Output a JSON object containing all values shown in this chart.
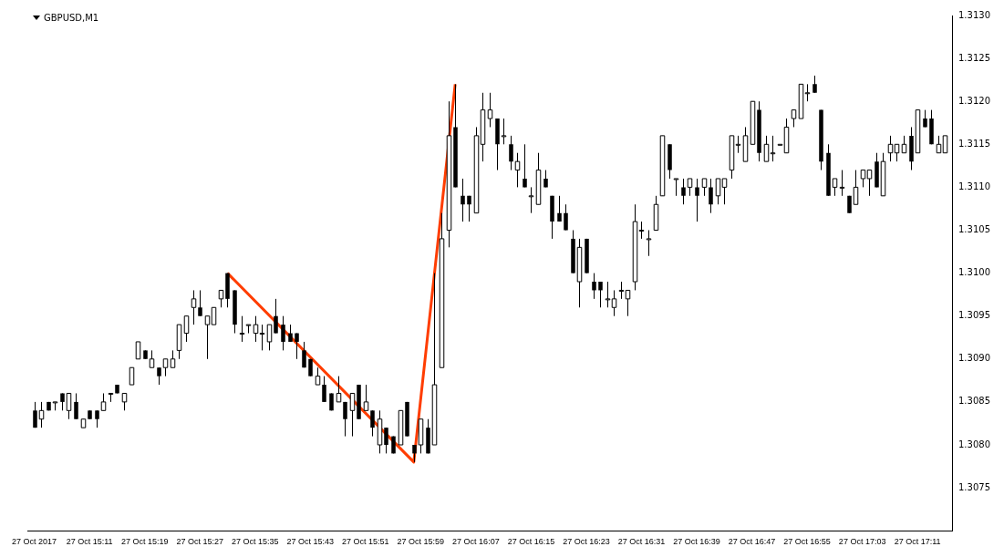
{
  "chart_data": {
    "type": "candlestick",
    "title": "GBPUSD,M1",
    "x": [
      "2017-10-27T15:03",
      "2017-10-27T15:04",
      "2017-10-27T15:05",
      "2017-10-27T15:06",
      "2017-10-27T15:07",
      "2017-10-27T15:08",
      "2017-10-27T15:09",
      "2017-10-27T15:10",
      "2017-10-27T15:11",
      "2017-10-27T15:12",
      "2017-10-27T15:13",
      "2017-10-27T15:14",
      "2017-10-27T15:15",
      "2017-10-27T15:16",
      "2017-10-27T15:17",
      "2017-10-27T15:18",
      "2017-10-27T15:19",
      "2017-10-27T15:20",
      "2017-10-27T15:21",
      "2017-10-27T15:22",
      "2017-10-27T15:23",
      "2017-10-27T15:24",
      "2017-10-27T15:25",
      "2017-10-27T15:26",
      "2017-10-27T15:27",
      "2017-10-27T15:28",
      "2017-10-27T15:29",
      "2017-10-27T15:30",
      "2017-10-27T15:31",
      "2017-10-27T15:32",
      "2017-10-27T15:33",
      "2017-10-27T15:34",
      "2017-10-27T15:35",
      "2017-10-27T15:36",
      "2017-10-27T15:37",
      "2017-10-27T15:38",
      "2017-10-27T15:39",
      "2017-10-27T15:40",
      "2017-10-27T15:41",
      "2017-10-27T15:42",
      "2017-10-27T15:43",
      "2017-10-27T15:44",
      "2017-10-27T15:45",
      "2017-10-27T15:46",
      "2017-10-27T15:47",
      "2017-10-27T15:48",
      "2017-10-27T15:49",
      "2017-10-27T15:50",
      "2017-10-27T15:51",
      "2017-10-27T15:52",
      "2017-10-27T15:53",
      "2017-10-27T15:54",
      "2017-10-27T15:55",
      "2017-10-27T15:56",
      "2017-10-27T15:57",
      "2017-10-27T15:58",
      "2017-10-27T15:59",
      "2017-10-27T16:00",
      "2017-10-27T16:01",
      "2017-10-27T16:02",
      "2017-10-27T16:03",
      "2017-10-27T16:04",
      "2017-10-27T16:05",
      "2017-10-27T16:06",
      "2017-10-27T16:07",
      "2017-10-27T16:08",
      "2017-10-27T16:09",
      "2017-10-27T16:10",
      "2017-10-27T16:11",
      "2017-10-27T16:12",
      "2017-10-27T16:13",
      "2017-10-27T16:14",
      "2017-10-27T16:15",
      "2017-10-27T16:16",
      "2017-10-27T16:17",
      "2017-10-27T16:18",
      "2017-10-27T16:19",
      "2017-10-27T16:20",
      "2017-10-27T16:21",
      "2017-10-27T16:22",
      "2017-10-27T16:23",
      "2017-10-27T16:24",
      "2017-10-27T16:25",
      "2017-10-27T16:26",
      "2017-10-27T16:27",
      "2017-10-27T16:28",
      "2017-10-27T16:29",
      "2017-10-27T16:30",
      "2017-10-27T16:31",
      "2017-10-27T16:32",
      "2017-10-27T16:33",
      "2017-10-27T16:34",
      "2017-10-27T16:35",
      "2017-10-27T16:36",
      "2017-10-27T16:37",
      "2017-10-27T16:38",
      "2017-10-27T16:39",
      "2017-10-27T16:40",
      "2017-10-27T16:41",
      "2017-10-27T16:42",
      "2017-10-27T16:43",
      "2017-10-27T16:44",
      "2017-10-27T16:45",
      "2017-10-27T16:46",
      "2017-10-27T16:47",
      "2017-10-27T16:48",
      "2017-10-27T16:49",
      "2017-10-27T16:50",
      "2017-10-27T16:51",
      "2017-10-27T16:52",
      "2017-10-27T16:53",
      "2017-10-27T16:54",
      "2017-10-27T16:55",
      "2017-10-27T16:56",
      "2017-10-27T16:57",
      "2017-10-27T16:58",
      "2017-10-27T16:59",
      "2017-10-27T17:00",
      "2017-10-27T17:01",
      "2017-10-27T17:02",
      "2017-10-27T17:03",
      "2017-10-27T17:04",
      "2017-10-27T17:05",
      "2017-10-27T17:06",
      "2017-10-27T17:07",
      "2017-10-27T17:08",
      "2017-10-27T17:09",
      "2017-10-27T17:10",
      "2017-10-27T17:11",
      "2017-10-27T17:12",
      "2017-10-27T17:13",
      "2017-10-27T17:14",
      "2017-10-27T17:15"
    ],
    "ohlc": [
      [
        1.3084,
        1.3085,
        1.3082,
        1.3082
      ],
      [
        1.3083,
        1.3085,
        1.3082,
        1.3084
      ],
      [
        1.3085,
        1.3085,
        1.3084,
        1.3084
      ],
      [
        1.3085,
        1.3085,
        1.3084,
        1.3085
      ],
      [
        1.3086,
        1.3086,
        1.3084,
        1.3085
      ],
      [
        1.3084,
        1.3086,
        1.3083,
        1.3086
      ],
      [
        1.3085,
        1.3086,
        1.3083,
        1.3083
      ],
      [
        1.3082,
        1.3083,
        1.3082,
        1.3083
      ],
      [
        1.3084,
        1.3084,
        1.3083,
        1.3083
      ],
      [
        1.3084,
        1.3084,
        1.3082,
        1.3083
      ],
      [
        1.3084,
        1.3086,
        1.3084,
        1.3085
      ],
      [
        1.3086,
        1.3086,
        1.3085,
        1.3086
      ],
      [
        1.3087,
        1.3087,
        1.3086,
        1.3086
      ],
      [
        1.3085,
        1.3086,
        1.3084,
        1.3086
      ],
      [
        1.3087,
        1.3089,
        1.3087,
        1.3089
      ],
      [
        1.309,
        1.3092,
        1.309,
        1.3092
      ],
      [
        1.3091,
        1.3091,
        1.309,
        1.309
      ],
      [
        1.3089,
        1.3091,
        1.3089,
        1.309
      ],
      [
        1.3089,
        1.3089,
        1.3087,
        1.3088
      ],
      [
        1.3089,
        1.309,
        1.3088,
        1.309
      ],
      [
        1.3089,
        1.3091,
        1.3089,
        1.309
      ],
      [
        1.3091,
        1.3094,
        1.309,
        1.3094
      ],
      [
        1.3093,
        1.3095,
        1.3092,
        1.3095
      ],
      [
        1.3096,
        1.3098,
        1.3094,
        1.3097
      ],
      [
        1.3096,
        1.3098,
        1.3095,
        1.3095
      ],
      [
        1.3094,
        1.3095,
        1.309,
        1.3095
      ],
      [
        1.3094,
        1.3096,
        1.3094,
        1.3096
      ],
      [
        1.3097,
        1.3098,
        1.3096,
        1.3098
      ],
      [
        1.31,
        1.31,
        1.3096,
        1.3097
      ],
      [
        1.3098,
        1.3098,
        1.3093,
        1.3094
      ],
      [
        1.3093,
        1.3095,
        1.3092,
        1.3093
      ],
      [
        1.3094,
        1.3094,
        1.3093,
        1.3094
      ],
      [
        1.3093,
        1.3095,
        1.3092,
        1.3094
      ],
      [
        1.3093,
        1.3094,
        1.3091,
        1.3093
      ],
      [
        1.3092,
        1.3094,
        1.3091,
        1.3094
      ],
      [
        1.3095,
        1.3097,
        1.3093,
        1.3093
      ],
      [
        1.3094,
        1.3095,
        1.3091,
        1.3092
      ],
      [
        1.3093,
        1.3094,
        1.3092,
        1.3092
      ],
      [
        1.3093,
        1.3093,
        1.309,
        1.3092
      ],
      [
        1.3091,
        1.3092,
        1.3089,
        1.3089
      ],
      [
        1.309,
        1.309,
        1.3088,
        1.3088
      ],
      [
        1.3087,
        1.3089,
        1.3087,
        1.3088
      ],
      [
        1.3087,
        1.3088,
        1.3085,
        1.3085
      ],
      [
        1.3086,
        1.3086,
        1.3084,
        1.3084
      ],
      [
        1.3085,
        1.3088,
        1.3085,
        1.3086
      ],
      [
        1.3085,
        1.3085,
        1.3081,
        1.3083
      ],
      [
        1.3084,
        1.3086,
        1.3081,
        1.3086
      ],
      [
        1.3087,
        1.3087,
        1.3083,
        1.3083
      ],
      [
        1.3084,
        1.3087,
        1.3084,
        1.3085
      ],
      [
        1.3084,
        1.3084,
        1.3081,
        1.3082
      ],
      [
        1.308,
        1.3084,
        1.3079,
        1.3083
      ],
      [
        1.3082,
        1.3082,
        1.3079,
        1.308
      ],
      [
        1.3081,
        1.3081,
        1.3079,
        1.3079
      ],
      [
        1.308,
        1.3084,
        1.308,
        1.3084
      ],
      [
        1.3085,
        1.3085,
        1.3081,
        1.3081
      ],
      [
        1.308,
        1.308,
        1.3078,
        1.3079
      ],
      [
        1.308,
        1.3083,
        1.3079,
        1.3083
      ],
      [
        1.3082,
        1.3083,
        1.3079,
        1.3079
      ],
      [
        1.308,
        1.31,
        1.308,
        1.3087
      ],
      [
        1.3089,
        1.3107,
        1.3089,
        1.3104
      ],
      [
        1.3105,
        1.312,
        1.3103,
        1.3116
      ],
      [
        1.3117,
        1.3122,
        1.311,
        1.311
      ],
      [
        1.3109,
        1.3111,
        1.3106,
        1.3108
      ],
      [
        1.3109,
        1.3109,
        1.3106,
        1.3108
      ],
      [
        1.3107,
        1.3117,
        1.3107,
        1.3116
      ],
      [
        1.3115,
        1.3121,
        1.3113,
        1.3119
      ],
      [
        1.3118,
        1.3121,
        1.3117,
        1.3119
      ],
      [
        1.3118,
        1.3118,
        1.3112,
        1.3115
      ],
      [
        1.3116,
        1.3118,
        1.3115,
        1.3116
      ],
      [
        1.3115,
        1.3116,
        1.3112,
        1.3113
      ],
      [
        1.3112,
        1.3114,
        1.311,
        1.3113
      ],
      [
        1.3111,
        1.3115,
        1.311,
        1.311
      ],
      [
        1.3109,
        1.311,
        1.3107,
        1.3109
      ],
      [
        1.3108,
        1.3114,
        1.3108,
        1.3112
      ],
      [
        1.3111,
        1.3112,
        1.311,
        1.311
      ],
      [
        1.3109,
        1.3109,
        1.3104,
        1.3106
      ],
      [
        1.3107,
        1.3109,
        1.3106,
        1.3106
      ],
      [
        1.3107,
        1.3108,
        1.3105,
        1.3105
      ],
      [
        1.3104,
        1.3105,
        1.31,
        1.31
      ],
      [
        1.3099,
        1.3104,
        1.3096,
        1.3103
      ],
      [
        1.3104,
        1.3104,
        1.31,
        1.31
      ],
      [
        1.3099,
        1.31,
        1.3097,
        1.3098
      ],
      [
        1.3099,
        1.3099,
        1.3096,
        1.3098
      ],
      [
        1.3097,
        1.3099,
        1.3096,
        1.3097
      ],
      [
        1.3096,
        1.3098,
        1.3095,
        1.3097
      ],
      [
        1.3098,
        1.3099,
        1.3097,
        1.3098
      ],
      [
        1.3097,
        1.3098,
        1.3095,
        1.3098
      ],
      [
        1.3099,
        1.3108,
        1.3098,
        1.3106
      ],
      [
        1.3105,
        1.3106,
        1.3104,
        1.3105
      ],
      [
        1.3104,
        1.3105,
        1.3102,
        1.3104
      ],
      [
        1.3105,
        1.3109,
        1.3105,
        1.3108
      ],
      [
        1.3109,
        1.3116,
        1.3109,
        1.3116
      ],
      [
        1.3115,
        1.3115,
        1.3111,
        1.3112
      ],
      [
        1.3111,
        1.3111,
        1.3109,
        1.3111
      ],
      [
        1.311,
        1.3111,
        1.3108,
        1.3109
      ],
      [
        1.311,
        1.3111,
        1.3109,
        1.3111
      ],
      [
        1.311,
        1.3111,
        1.3106,
        1.3109
      ],
      [
        1.311,
        1.3111,
        1.3109,
        1.3111
      ],
      [
        1.311,
        1.3111,
        1.3107,
        1.3108
      ],
      [
        1.3109,
        1.3111,
        1.3108,
        1.3111
      ],
      [
        1.311,
        1.3111,
        1.3108,
        1.3111
      ],
      [
        1.3112,
        1.3116,
        1.3111,
        1.3116
      ],
      [
        1.3115,
        1.3116,
        1.3114,
        1.3115
      ],
      [
        1.3113,
        1.3117,
        1.3113,
        1.3116
      ],
      [
        1.3115,
        1.312,
        1.3115,
        1.312
      ],
      [
        1.3119,
        1.312,
        1.3113,
        1.3114
      ],
      [
        1.3113,
        1.3116,
        1.3113,
        1.3115
      ],
      [
        1.3114,
        1.3116,
        1.3113,
        1.3114
      ],
      [
        1.3115,
        1.3115,
        1.3115,
        1.3115
      ],
      [
        1.3114,
        1.3118,
        1.3114,
        1.3117
      ],
      [
        1.3118,
        1.3119,
        1.3117,
        1.3119
      ],
      [
        1.3118,
        1.3122,
        1.3118,
        1.3122
      ],
      [
        1.3121,
        1.3122,
        1.312,
        1.3121
      ],
      [
        1.3122,
        1.3123,
        1.3121,
        1.3121
      ],
      [
        1.3119,
        1.3119,
        1.3112,
        1.3113
      ],
      [
        1.3114,
        1.3115,
        1.3109,
        1.3109
      ],
      [
        1.311,
        1.3111,
        1.3109,
        1.3111
      ],
      [
        1.311,
        1.3112,
        1.3109,
        1.311
      ],
      [
        1.3109,
        1.3109,
        1.3107,
        1.3107
      ],
      [
        1.3108,
        1.3112,
        1.3108,
        1.311
      ],
      [
        1.3111,
        1.3112,
        1.311,
        1.3112
      ],
      [
        1.3111,
        1.3112,
        1.3109,
        1.3112
      ],
      [
        1.3113,
        1.3114,
        1.311,
        1.311
      ],
      [
        1.3109,
        1.3114,
        1.3109,
        1.3113
      ],
      [
        1.3114,
        1.3116,
        1.3113,
        1.3115
      ],
      [
        1.3114,
        1.3115,
        1.3113,
        1.3115
      ],
      [
        1.3114,
        1.3116,
        1.3114,
        1.3115
      ],
      [
        1.3116,
        1.3117,
        1.3112,
        1.3113
      ],
      [
        1.3114,
        1.3119,
        1.3114,
        1.3119
      ],
      [
        1.3118,
        1.3119,
        1.3117,
        1.3117
      ],
      [
        1.3118,
        1.3119,
        1.3115,
        1.3115
      ],
      [
        1.3114,
        1.3116,
        1.3114,
        1.3115
      ],
      [
        1.3114,
        1.3116,
        1.3114,
        1.3116
      ]
    ],
    "series": [
      {
        "type": "line",
        "color": "#ff3d00",
        "x": [
          "2017-10-27T15:31",
          "2017-10-27T15:58",
          "2017-10-27T16:04"
        ],
        "values": [
          1.31,
          1.3078,
          1.3122
        ]
      }
    ],
    "xlim": [
      "2017-10-27T15:02",
      "2017-10-27T17:16"
    ],
    "xticks": [
      {
        "value": "2017-10-27T15:03",
        "label": "27 Oct 2017"
      },
      {
        "value": "2017-10-27T15:11",
        "label": "27 Oct 15:11"
      },
      {
        "value": "2017-10-27T15:19",
        "label": "27 Oct 15:19"
      },
      {
        "value": "2017-10-27T15:27",
        "label": "27 Oct 15:27"
      },
      {
        "value": "2017-10-27T15:35",
        "label": "27 Oct 15:35"
      },
      {
        "value": "2017-10-27T15:43",
        "label": "27 Oct 15:43"
      },
      {
        "value": "2017-10-27T15:51",
        "label": "27 Oct 15:51"
      },
      {
        "value": "2017-10-27T15:59",
        "label": "27 Oct 15:59"
      },
      {
        "value": "2017-10-27T16:07",
        "label": "27 Oct 16:07"
      },
      {
        "value": "2017-10-27T16:15",
        "label": "27 Oct 16:15"
      },
      {
        "value": "2017-10-27T16:23",
        "label": "27 Oct 16:23"
      },
      {
        "value": "2017-10-27T16:31",
        "label": "27 Oct 16:31"
      },
      {
        "value": "2017-10-27T16:39",
        "label": "27 Oct 16:39"
      },
      {
        "value": "2017-10-27T16:47",
        "label": "27 Oct 16:47"
      },
      {
        "value": "2017-10-27T16:55",
        "label": "27 Oct 16:55"
      },
      {
        "value": "2017-10-27T17:03",
        "label": "27 Oct 17:03"
      },
      {
        "value": "2017-10-27T17:11",
        "label": "27 Oct 17:11"
      }
    ],
    "ylim": [
      1.307,
      1.313
    ],
    "yticks": [
      {
        "value": 1.3075,
        "label": "1.3075"
      },
      {
        "value": 1.308,
        "label": "1.3080"
      },
      {
        "value": 1.3085,
        "label": "1.3085"
      },
      {
        "value": 1.309,
        "label": "1.3090"
      },
      {
        "value": 1.3095,
        "label": "1.3095"
      },
      {
        "value": 1.31,
        "label": "1.3100"
      },
      {
        "value": 1.3105,
        "label": "1.3105"
      },
      {
        "value": 1.311,
        "label": "1.3110"
      },
      {
        "value": 1.3115,
        "label": "1.3115"
      },
      {
        "value": 1.312,
        "label": "1.3120"
      },
      {
        "value": 1.3125,
        "label": "1.3125"
      },
      {
        "value": 1.313,
        "label": "1.3130"
      }
    ],
    "grid": false,
    "legend": false
  }
}
